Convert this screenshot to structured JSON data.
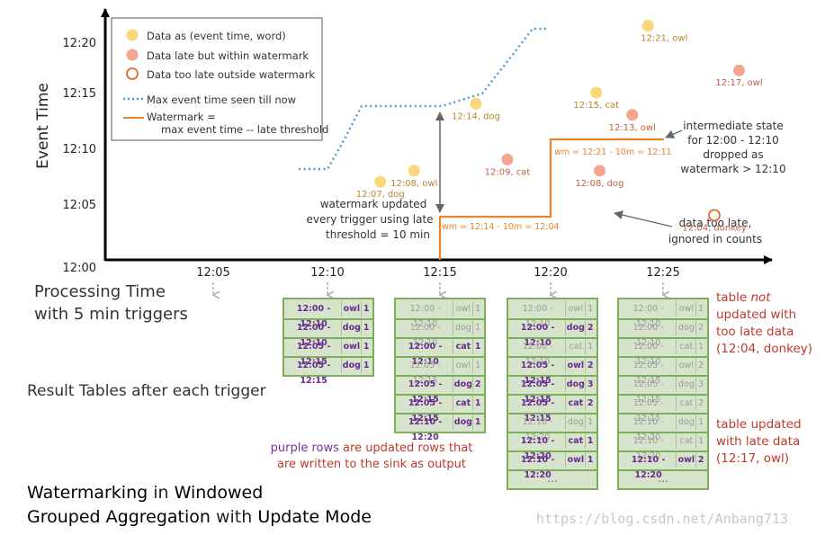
{
  "axes": {
    "y_title": "Event Time",
    "x_title_line1": "Processing Time",
    "x_title_line2": "with 5 min triggers",
    "y_ticks": [
      "12:20",
      "12:15",
      "12:10",
      "12:05",
      "12:00"
    ],
    "x_ticks": [
      "12:05",
      "12:10",
      "12:15",
      "12:20",
      "12:25"
    ]
  },
  "legend": {
    "on_time": "Data as (event time, word)",
    "late": "Data late but within watermark",
    "too_late": "Data too late outside watermark",
    "max_line": "Max event time seen till now",
    "wm_line1": "Watermark =",
    "wm_line2": "max event time -- late threshold"
  },
  "points": [
    {
      "label": "12:07, dog",
      "kind": "on_time",
      "pt": 12.35,
      "et": 12.1167
    },
    {
      "label": "12:08, owl",
      "kind": "on_time",
      "pt": 13.85,
      "et": 12.1333
    },
    {
      "label": "12:14, dog",
      "kind": "on_time",
      "pt": 16.6,
      "et": 12.2333
    },
    {
      "label": "12:09, cat",
      "kind": "late",
      "pt": 18.0,
      "et": 12.15
    },
    {
      "label": "12:15, cat",
      "kind": "on_time",
      "pt": 21.95,
      "et": 12.25
    },
    {
      "label": "12:08, dog",
      "kind": "late",
      "pt": 22.1,
      "et": 12.1333
    },
    {
      "label": "12:13, owl",
      "kind": "late",
      "pt": 23.55,
      "et": 12.2167
    },
    {
      "label": "12:21, owl",
      "kind": "on_time",
      "pt": 24.25,
      "et": 12.35
    },
    {
      "label": "12:04, donkey",
      "kind": "too_late",
      "pt": 27.2,
      "et": 12.0667
    },
    {
      "label": "12:17, owl",
      "kind": "late",
      "pt": 28.3,
      "et": 12.2833
    }
  ],
  "annotations": {
    "wm1": "wm = 12:14 - 10m = 12:04",
    "wm2": "wm = 12:21 - 10m = 12:11",
    "updated_1": "watermark updated",
    "updated_2": "every trigger using late",
    "updated_3": "threshold = 10 min",
    "state_1": "intermediate state",
    "state_2": "for 12:00 - 12:10",
    "state_3": "dropped as",
    "state_4": "watermark > 12:10",
    "toolate_1": "data too late,",
    "toolate_2": "ignored in counts"
  },
  "tables": [
    [
      {
        "w": "12:00 - 12:10",
        "word": "owl",
        "n": "1",
        "s": "upd"
      },
      {
        "w": "12:00 - 12:10",
        "word": "dog",
        "n": "1",
        "s": "upd"
      },
      {
        "w": "12:05 - 12:15",
        "word": "owl",
        "n": "1",
        "s": "upd"
      },
      {
        "w": "12:05 - 12:15",
        "word": "dog",
        "n": "1",
        "s": "upd"
      }
    ],
    [
      {
        "w": "12:00 - 12:10",
        "word": "owl",
        "n": "1",
        "s": "old"
      },
      {
        "w": "12:00 - 12:10",
        "word": "dog",
        "n": "1",
        "s": "old"
      },
      {
        "w": "12:00 - 12:10",
        "word": "cat",
        "n": "1",
        "s": "upd"
      },
      {
        "w": "12:05 - 12:15",
        "word": "owl",
        "n": "1",
        "s": "old"
      },
      {
        "w": "12:05 - 12:15",
        "word": "dog",
        "n": "2",
        "s": "upd"
      },
      {
        "w": "12:05 - 12:15",
        "word": "cat",
        "n": "1",
        "s": "upd"
      },
      {
        "w": "12:10 - 12:20",
        "word": "dog",
        "n": "1",
        "s": "upd"
      }
    ],
    [
      {
        "w": "12:00 - 12:10",
        "word": "owl",
        "n": "1",
        "s": "old"
      },
      {
        "w": "12:00 - 12:10",
        "word": "dog",
        "n": "2",
        "s": "upd"
      },
      {
        "w": "12:00 - 12:10",
        "word": "cat",
        "n": "1",
        "s": "old"
      },
      {
        "w": "12:05 - 12:15",
        "word": "owl",
        "n": "2",
        "s": "upd"
      },
      {
        "w": "12:05 - 12:15",
        "word": "dog",
        "n": "3",
        "s": "upd"
      },
      {
        "w": "12:05 - 12:15",
        "word": "cat",
        "n": "2",
        "s": "upd"
      },
      {
        "w": "12:10 - 12:20",
        "word": "dog",
        "n": "1",
        "s": "old"
      },
      {
        "w": "12:10 - 12:20",
        "word": "cat",
        "n": "1",
        "s": "upd"
      },
      {
        "w": "12:10 - 12:20",
        "word": "owl",
        "n": "1",
        "s": "upd"
      }
    ],
    [
      {
        "w": "12:00 - 12:10",
        "word": "owl",
        "n": "1",
        "s": "old"
      },
      {
        "w": "12:00 - 12:10",
        "word": "dog",
        "n": "2",
        "s": "old"
      },
      {
        "w": "12:00 - 12:10",
        "word": "cat",
        "n": "1",
        "s": "old"
      },
      {
        "w": "12:05 - 12:15",
        "word": "owl",
        "n": "2",
        "s": "old"
      },
      {
        "w": "12:05 - 12:15",
        "word": "dog",
        "n": "3",
        "s": "old"
      },
      {
        "w": "12:05 - 12:15",
        "word": "cat",
        "n": "2",
        "s": "old"
      },
      {
        "w": "12:10 - 12:20",
        "word": "dog",
        "n": "1",
        "s": "old"
      },
      {
        "w": "12:10 - 12:20",
        "word": "cat",
        "n": "1",
        "s": "old"
      },
      {
        "w": "12:10 - 12:20",
        "word": "owl",
        "n": "2",
        "s": "upd"
      }
    ]
  ],
  "ellipsis": "...",
  "results_label": "Result Tables after each trigger",
  "notes": {
    "not_updated_1": "table ",
    "not_updated_not": "not",
    "not_updated_2": "updated with",
    "not_updated_3": "too late data",
    "not_updated_4": "(12:04, donkey)",
    "updated_1": "table updated",
    "updated_2": "with late data",
    "updated_3": "(12:17, owl)",
    "purple_1": "purple rows",
    "purple_2": " are updated rows that",
    "purple_3": "are written to the sink as output"
  },
  "title": {
    "w1": "Watermarking",
    "w2": " in ",
    "w3": "Windowed",
    "w4": "Grouped Aggregation",
    "w5": " with ",
    "w6": "Update Mode"
  },
  "site_watermark": "https://blog.csdn.net/Anbang713",
  "colors": {
    "on_time": "#fbd67a",
    "late": "#f4a58d",
    "too_late_ring": "#e06b2a",
    "max_line": "#4f9bd4",
    "watermark": "#e8832e",
    "table_bg": "#d6e4cc",
    "table_border": "#7cae5c",
    "purple": "#6a2a8f",
    "note_red": "#c0392b"
  }
}
